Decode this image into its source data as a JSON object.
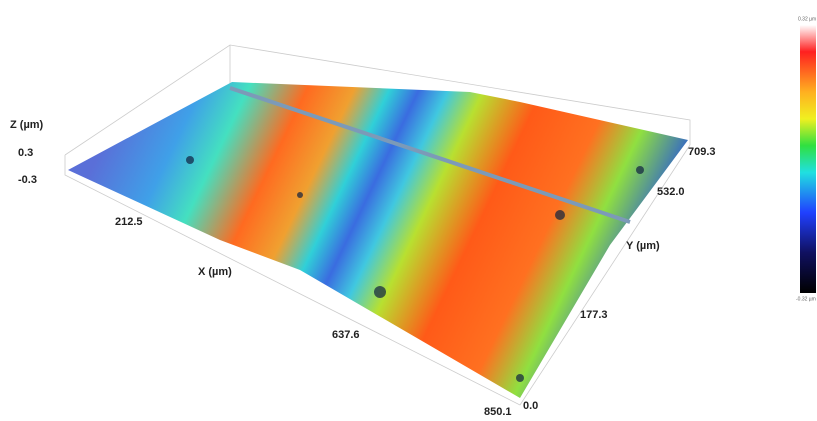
{
  "axes": {
    "z": {
      "label": "Z (µm)",
      "ticks": [
        "0.3",
        "-0.3"
      ]
    },
    "x": {
      "label": "X (µm)",
      "ticks": [
        "212.5",
        "637.6",
        "850.1"
      ]
    },
    "y": {
      "label": "Y (µm)",
      "ticks": [
        "0.0",
        "177.3",
        "532.0",
        "709.3"
      ]
    }
  },
  "colorbar": {
    "top": "0.32 µm",
    "bottom": "-0.32 µm"
  }
}
